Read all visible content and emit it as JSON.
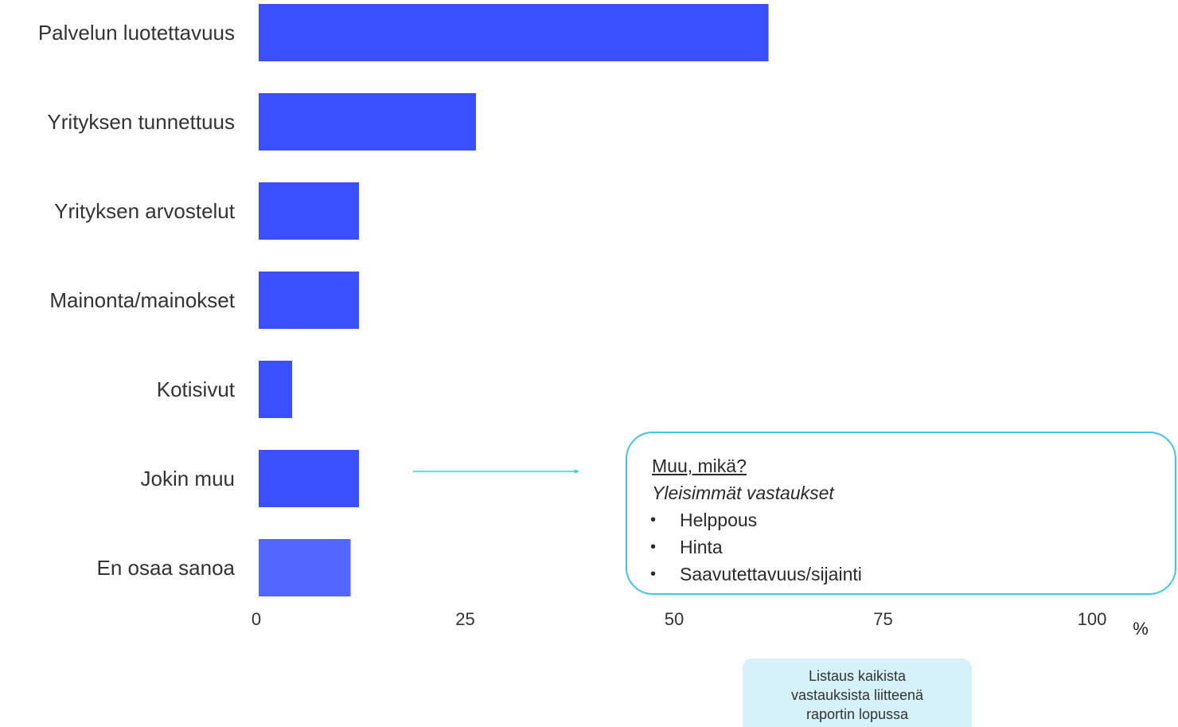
{
  "chart_data": {
    "type": "bar",
    "orientation": "horizontal",
    "categories": [
      "Palvelun luotettavuus",
      "Yrityksen tunnettuus",
      "Yrityksen arvostelut",
      "Mainonta/mainokset",
      "Kotisivut",
      "Jokin muu",
      "En osaa sanoa"
    ],
    "values": [
      61,
      26,
      12,
      12,
      4,
      12,
      11
    ],
    "xlim": [
      0,
      100
    ],
    "ticks": [
      "0",
      "25",
      "50",
      "75",
      "100"
    ],
    "xlabel": "%",
    "title": "",
    "grid": false,
    "colors": {
      "bar": "#3a50ff",
      "bar_last": "#5366ff",
      "arrow": "#40c6e8"
    }
  },
  "callout": {
    "title": "Muu, mikä?",
    "subtitle": "Yleisimmät vastaukset",
    "items": [
      "Helppous",
      "Hinta",
      "Saavutettavuus/sijainti"
    ],
    "border_color": "#40c6e8"
  },
  "note": {
    "lines": [
      "Listaus kaikista",
      "vastauksista liitteenä",
      "raportin lopussa"
    ],
    "background": "#d5f1f9"
  }
}
